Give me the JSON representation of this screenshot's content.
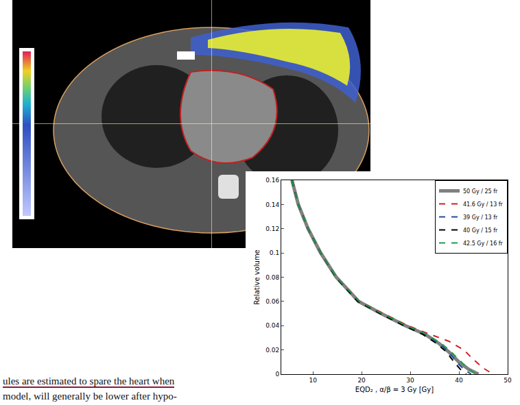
{
  "chart_data": {
    "type": "line",
    "xlabel": "EQD₂ , α/β = 3 Gy [Gy]",
    "ylabel": "Relative volume",
    "xlim": [
      3.5,
      50
    ],
    "xticks": [
      10,
      20,
      30,
      40,
      50
    ],
    "ylim": [
      0,
      0.16
    ],
    "yticks": [
      0,
      0.02,
      0.04,
      0.06,
      0.08,
      0.1,
      0.12,
      0.14,
      0.16
    ],
    "grid": false,
    "legend": "upper right",
    "series": [
      {
        "name": "50 Gy / 25 fr",
        "color": "#808080",
        "line_style": "solid",
        "x": [
          5.7,
          7,
          9,
          11.6,
          14.8,
          19.4,
          24,
          29,
          33,
          36,
          38,
          40,
          42,
          44
        ],
        "values": [
          0.16,
          0.14,
          0.12,
          0.1,
          0.08,
          0.06,
          0.05,
          0.04,
          0.033,
          0.025,
          0.018,
          0.01,
          0.004,
          0
        ]
      },
      {
        "name": "41.6 Gy / 13 fr",
        "color": "#d02020",
        "line_style": "dash",
        "x": [
          5.7,
          7,
          9,
          11.6,
          14.8,
          19.6,
          24.5,
          29.5,
          34,
          38,
          41,
          43,
          45,
          47
        ],
        "values": [
          0.16,
          0.14,
          0.12,
          0.1,
          0.08,
          0.06,
          0.05,
          0.04,
          0.033,
          0.027,
          0.02,
          0.012,
          0.005,
          0
        ]
      },
      {
        "name": "39 Gy / 13 fr",
        "color": "#1f4e9c",
        "line_style": "dash",
        "x": [
          5.7,
          7,
          9,
          11.6,
          14.8,
          19.4,
          24,
          29,
          33,
          36,
          38,
          39.5,
          41,
          42.5
        ],
        "values": [
          0.16,
          0.14,
          0.12,
          0.1,
          0.08,
          0.06,
          0.05,
          0.04,
          0.033,
          0.025,
          0.018,
          0.01,
          0.004,
          0
        ]
      },
      {
        "name": "40 Gy / 15 fr",
        "color": "#000000",
        "line_style": "dash",
        "x": [
          5.7,
          7,
          9,
          11.6,
          14.7,
          19.2,
          23.8,
          28.7,
          32.5,
          35.5,
          37.5,
          39,
          40.3,
          41.5
        ],
        "values": [
          0.16,
          0.14,
          0.12,
          0.1,
          0.08,
          0.06,
          0.05,
          0.04,
          0.033,
          0.025,
          0.018,
          0.01,
          0.004,
          0
        ]
      },
      {
        "name": "42.5 Gy / 16 fr",
        "color": "#1a9e4a",
        "line_style": "dash",
        "x": [
          5.7,
          7,
          9,
          11.6,
          14.8,
          19.5,
          24.2,
          29.2,
          33.3,
          36.5,
          38.5,
          40.5,
          42,
          43.5
        ],
        "values": [
          0.16,
          0.14,
          0.12,
          0.1,
          0.08,
          0.06,
          0.05,
          0.04,
          0.033,
          0.025,
          0.018,
          0.01,
          0.004,
          0
        ]
      }
    ]
  },
  "text_lines": [
    "ules are estimated to spare the heart when",
    "model, will generally be lower after hypo-"
  ]
}
